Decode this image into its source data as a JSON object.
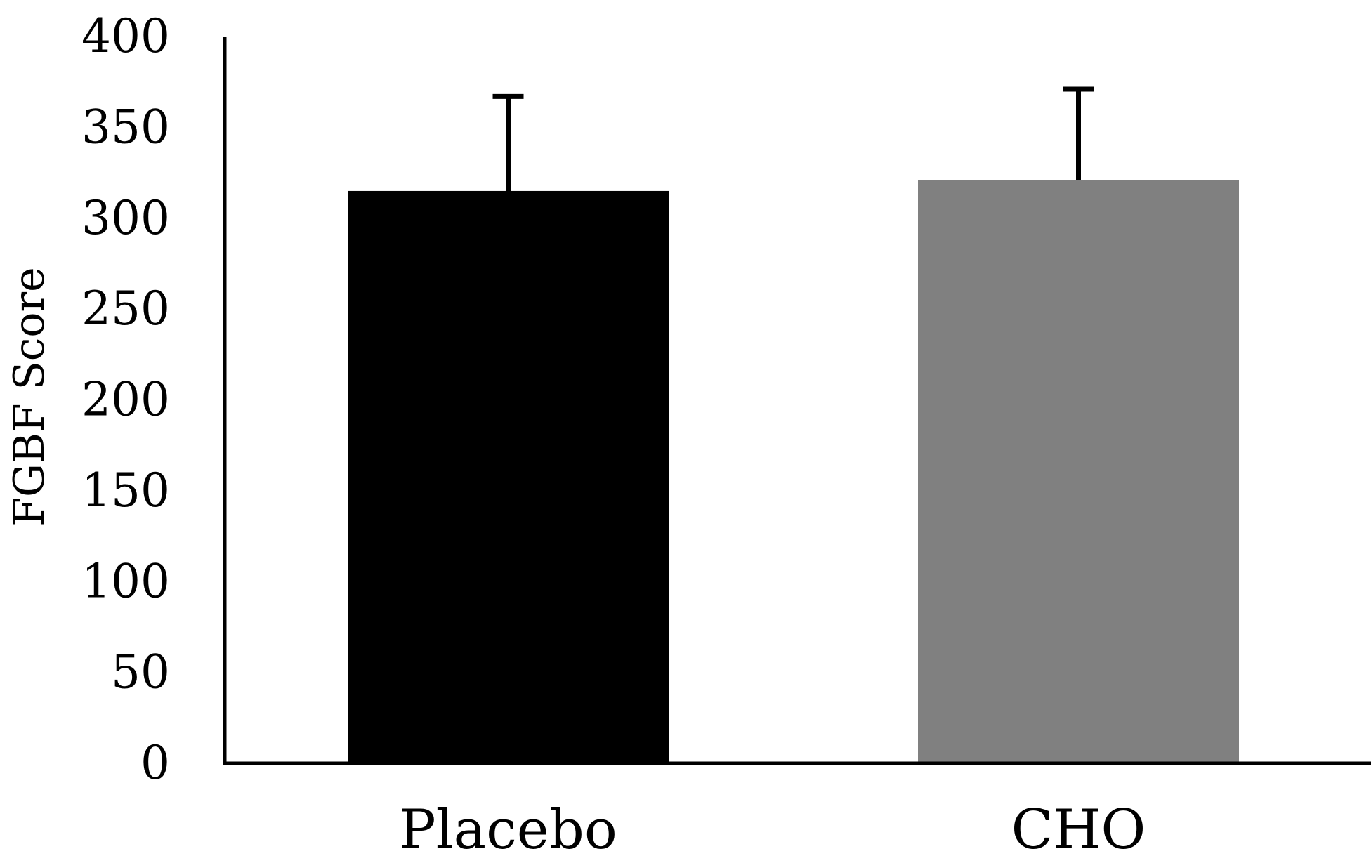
{
  "chart_data": {
    "type": "bar",
    "categories": [
      "Placebo",
      "CHO"
    ],
    "values": [
      315,
      321
    ],
    "error_upper": [
      367,
      371
    ],
    "colors": [
      "#000000",
      "#808080"
    ],
    "title": "",
    "xlabel": "",
    "ylabel": "FGBF Score",
    "ylim": [
      0,
      400
    ],
    "yticks": [
      "0",
      "50",
      "100",
      "150",
      "200",
      "250",
      "300",
      "350",
      "400"
    ],
    "grid": false,
    "legend": "none"
  }
}
